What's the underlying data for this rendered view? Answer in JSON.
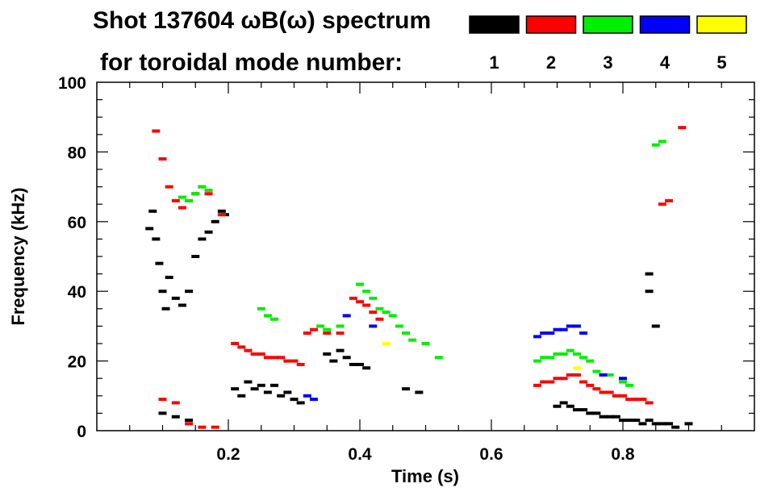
{
  "chart_data": {
    "type": "scatter",
    "title_line1": "Shot 137604 ωB(ω) spectrum",
    "title_line2": "for toroidal mode number:",
    "xlabel": "Time (s)",
    "ylabel": "Frequency (kHz)",
    "xlim": [
      0.0,
      1.0
    ],
    "ylim": [
      0,
      100
    ],
    "xticks": [
      {
        "value": 0.2,
        "label": "0.2"
      },
      {
        "value": 0.4,
        "label": "0.4"
      },
      {
        "value": 0.6,
        "label": "0.6"
      },
      {
        "value": 0.8,
        "label": "0.8"
      }
    ],
    "yticks": [
      {
        "value": 0,
        "label": "0"
      },
      {
        "value": 20,
        "label": "20"
      },
      {
        "value": 40,
        "label": "40"
      },
      {
        "value": 60,
        "label": "60"
      },
      {
        "value": 80,
        "label": "80"
      },
      {
        "value": 100,
        "label": "100"
      }
    ],
    "legend": [
      {
        "label": "1",
        "color": "#000000"
      },
      {
        "label": "2",
        "color": "#ff0000"
      },
      {
        "label": "3",
        "color": "#00ee00"
      },
      {
        "label": "4",
        "color": "#0000ff"
      },
      {
        "label": "5",
        "color": "#ffff00"
      }
    ],
    "series": [
      {
        "name": "n=1",
        "color": "#000000",
        "points": [
          [
            0.08,
            58
          ],
          [
            0.085,
            63
          ],
          [
            0.09,
            55
          ],
          [
            0.095,
            48
          ],
          [
            0.1,
            40
          ],
          [
            0.105,
            35
          ],
          [
            0.11,
            44
          ],
          [
            0.12,
            38
          ],
          [
            0.13,
            36
          ],
          [
            0.14,
            40
          ],
          [
            0.15,
            50
          ],
          [
            0.16,
            55
          ],
          [
            0.17,
            57
          ],
          [
            0.18,
            60
          ],
          [
            0.19,
            63
          ],
          [
            0.195,
            62
          ],
          [
            0.1,
            5
          ],
          [
            0.12,
            4
          ],
          [
            0.14,
            3
          ],
          [
            0.21,
            12
          ],
          [
            0.22,
            10
          ],
          [
            0.23,
            14
          ],
          [
            0.24,
            12
          ],
          [
            0.25,
            13
          ],
          [
            0.26,
            11
          ],
          [
            0.27,
            13
          ],
          [
            0.28,
            10
          ],
          [
            0.29,
            11
          ],
          [
            0.3,
            9
          ],
          [
            0.31,
            8
          ],
          [
            0.35,
            22
          ],
          [
            0.36,
            20
          ],
          [
            0.37,
            23
          ],
          [
            0.38,
            21
          ],
          [
            0.39,
            19
          ],
          [
            0.4,
            19
          ],
          [
            0.41,
            18
          ],
          [
            0.47,
            12
          ],
          [
            0.49,
            11
          ],
          [
            0.7,
            7
          ],
          [
            0.71,
            8
          ],
          [
            0.72,
            7
          ],
          [
            0.73,
            6
          ],
          [
            0.74,
            6
          ],
          [
            0.75,
            5
          ],
          [
            0.76,
            5
          ],
          [
            0.77,
            4
          ],
          [
            0.78,
            4
          ],
          [
            0.79,
            4
          ],
          [
            0.8,
            3
          ],
          [
            0.81,
            3
          ],
          [
            0.82,
            3
          ],
          [
            0.83,
            2
          ],
          [
            0.84,
            3
          ],
          [
            0.85,
            2
          ],
          [
            0.86,
            2
          ],
          [
            0.87,
            2
          ],
          [
            0.88,
            1
          ],
          [
            0.9,
            2
          ],
          [
            0.84,
            40
          ],
          [
            0.84,
            45
          ],
          [
            0.85,
            30
          ]
        ]
      },
      {
        "name": "n=2",
        "color": "#ff0000",
        "points": [
          [
            0.09,
            86
          ],
          [
            0.1,
            78
          ],
          [
            0.11,
            70
          ],
          [
            0.12,
            66
          ],
          [
            0.13,
            64
          ],
          [
            0.14,
            66
          ],
          [
            0.15,
            68
          ],
          [
            0.16,
            70
          ],
          [
            0.17,
            68
          ],
          [
            0.19,
            62
          ],
          [
            0.1,
            9
          ],
          [
            0.12,
            8
          ],
          [
            0.14,
            2
          ],
          [
            0.16,
            1
          ],
          [
            0.18,
            1
          ],
          [
            0.21,
            25
          ],
          [
            0.22,
            24
          ],
          [
            0.23,
            23
          ],
          [
            0.24,
            22
          ],
          [
            0.25,
            22
          ],
          [
            0.26,
            21
          ],
          [
            0.27,
            21
          ],
          [
            0.28,
            21
          ],
          [
            0.29,
            20
          ],
          [
            0.3,
            20
          ],
          [
            0.31,
            19
          ],
          [
            0.32,
            28
          ],
          [
            0.33,
            29
          ],
          [
            0.35,
            28
          ],
          [
            0.37,
            28
          ],
          [
            0.39,
            38
          ],
          [
            0.4,
            37
          ],
          [
            0.41,
            36
          ],
          [
            0.42,
            34
          ],
          [
            0.43,
            32
          ],
          [
            0.67,
            13
          ],
          [
            0.68,
            14
          ],
          [
            0.69,
            14
          ],
          [
            0.7,
            15
          ],
          [
            0.71,
            15
          ],
          [
            0.72,
            16
          ],
          [
            0.73,
            16
          ],
          [
            0.74,
            14
          ],
          [
            0.75,
            13
          ],
          [
            0.76,
            12
          ],
          [
            0.77,
            11
          ],
          [
            0.78,
            11
          ],
          [
            0.79,
            10
          ],
          [
            0.8,
            10
          ],
          [
            0.81,
            9
          ],
          [
            0.82,
            9
          ],
          [
            0.83,
            9
          ],
          [
            0.84,
            8
          ],
          [
            0.86,
            65
          ],
          [
            0.87,
            66
          ],
          [
            0.89,
            87
          ]
        ]
      },
      {
        "name": "n=3",
        "color": "#00ee00",
        "points": [
          [
            0.13,
            67
          ],
          [
            0.14,
            66
          ],
          [
            0.15,
            68
          ],
          [
            0.16,
            70
          ],
          [
            0.17,
            69
          ],
          [
            0.25,
            35
          ],
          [
            0.26,
            33
          ],
          [
            0.27,
            32
          ],
          [
            0.34,
            30
          ],
          [
            0.35,
            29
          ],
          [
            0.37,
            30
          ],
          [
            0.4,
            42
          ],
          [
            0.41,
            40
          ],
          [
            0.42,
            38
          ],
          [
            0.43,
            35
          ],
          [
            0.44,
            34
          ],
          [
            0.45,
            33
          ],
          [
            0.46,
            30
          ],
          [
            0.47,
            28
          ],
          [
            0.48,
            26
          ],
          [
            0.5,
            25
          ],
          [
            0.52,
            21
          ],
          [
            0.67,
            20
          ],
          [
            0.68,
            21
          ],
          [
            0.69,
            21
          ],
          [
            0.7,
            22
          ],
          [
            0.71,
            22
          ],
          [
            0.72,
            23
          ],
          [
            0.73,
            22
          ],
          [
            0.74,
            21
          ],
          [
            0.75,
            20
          ],
          [
            0.76,
            17
          ],
          [
            0.78,
            16
          ],
          [
            0.8,
            14
          ],
          [
            0.81,
            13
          ],
          [
            0.85,
            82
          ],
          [
            0.86,
            83
          ]
        ]
      },
      {
        "name": "n=4",
        "color": "#0000ff",
        "points": [
          [
            0.32,
            10
          ],
          [
            0.33,
            9
          ],
          [
            0.38,
            33
          ],
          [
            0.42,
            30
          ],
          [
            0.67,
            27
          ],
          [
            0.68,
            28
          ],
          [
            0.69,
            28
          ],
          [
            0.7,
            29
          ],
          [
            0.71,
            29
          ],
          [
            0.72,
            30
          ],
          [
            0.73,
            30
          ],
          [
            0.74,
            28
          ],
          [
            0.77,
            16
          ],
          [
            0.8,
            15
          ]
        ]
      },
      {
        "name": "n=5",
        "color": "#ffff00",
        "points": [
          [
            0.44,
            25
          ],
          [
            0.73,
            18
          ]
        ]
      }
    ]
  }
}
